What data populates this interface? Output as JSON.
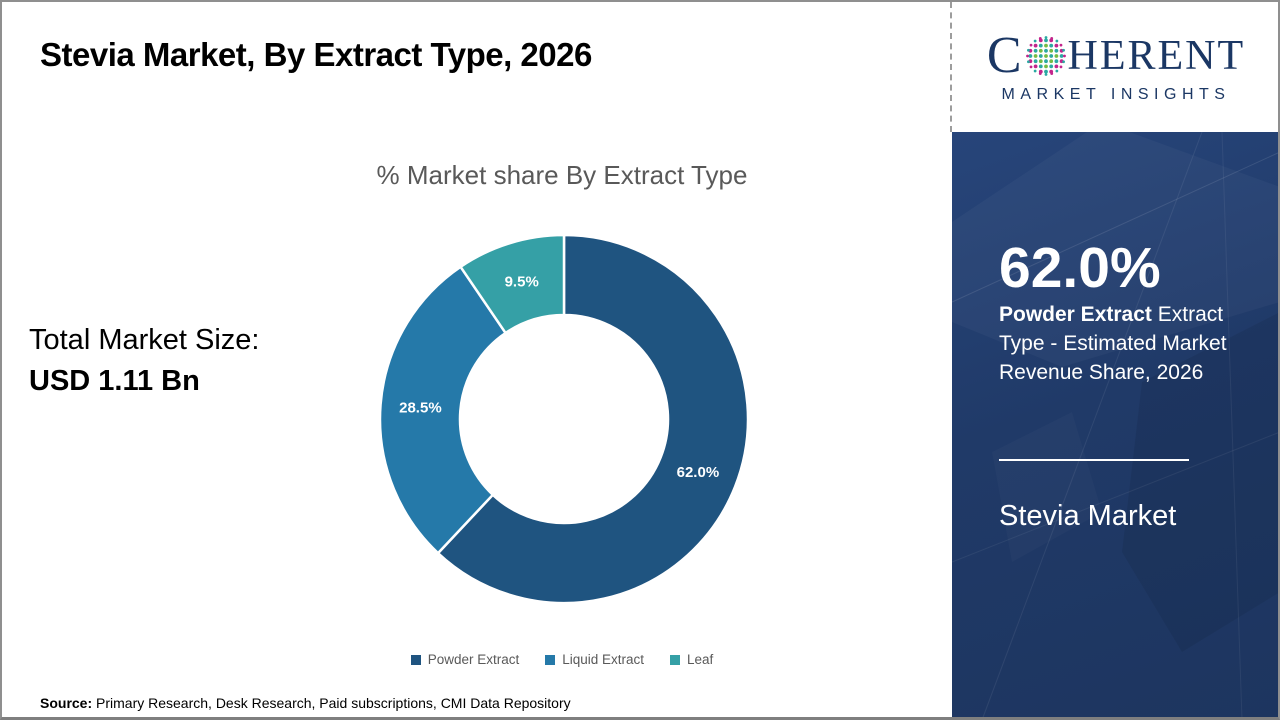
{
  "header": {
    "title": "Stevia Market, By Extract Type, 2026"
  },
  "left_panel": {
    "total_label": "Total Market Size:",
    "total_value": "USD 1.11 Bn"
  },
  "chart_data": {
    "type": "pie",
    "subtype": "donut",
    "title": "% Market share By Extract Type",
    "categories": [
      "Powder Extract",
      "Liquid Extract",
      "Leaf"
    ],
    "values": [
      62.0,
      28.5,
      9.5
    ],
    "data_labels": [
      "62.0%",
      "28.5%",
      "9.5%"
    ],
    "colors": [
      "#1F5480",
      "#2579A9",
      "#35A0A6"
    ],
    "legend_position": "bottom",
    "start_angle_deg": 0,
    "direction": "clockwise",
    "inner_radius_ratio": 0.565
  },
  "side_panel": {
    "stat_value": "62.0%",
    "stat_desc_bold": "Powder Extract",
    "stat_desc_rest": "Extract Type - Estimated Market Revenue Share, 2026",
    "panel_title": "Stevia Market",
    "background": "#203A68"
  },
  "logo": {
    "brand_first_letter": "C",
    "brand_rest": "HERENT",
    "brand_subtitle": "MARKET INSIGHTS",
    "navy": "#1B3764",
    "globe_dot_colors": [
      "#C2258C",
      "#2AA9A2",
      "#76BC43"
    ]
  },
  "footer": {
    "source_label": "Source:",
    "source_text": "Primary Research, Desk Research, Paid subscriptions, CMI Data Repository"
  }
}
